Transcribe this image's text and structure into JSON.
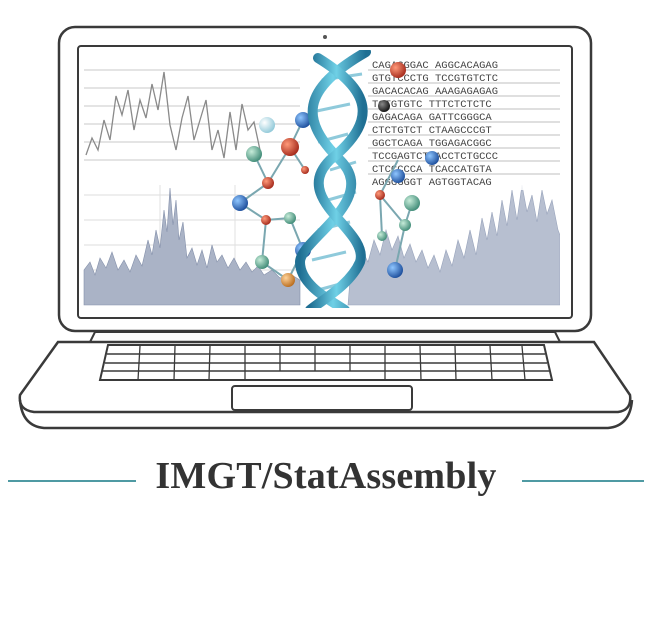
{
  "title": "IMGT/StatAssembly",
  "sequence_lines": [
    "CAGAGGGAC AGGCACAGAG",
    "GTGTCCCTG TCCGTGTCTC",
    "GACACACAG AAAGAGAGAG",
    "TGTGTGTC TTTCTCTCTC",
    "GAGACAGA GATTCGGGCA",
    "CTCTGTCT CTAAGCCCGT",
    "GGCTCAGA TGGAGACGGC",
    "TCCGAGTCT ACCTCTGCCC",
    "CTCCCCCA TCACCATGTA",
    "AGGGGGGT AGTGGTACAG"
  ],
  "colors": {
    "accent_rule": "#4f9aa3",
    "title_text": "#333333",
    "laptop_outline": "#3a3a3a",
    "helix_blue": "#3a9bbf",
    "area_fill": "#aab3c6"
  }
}
